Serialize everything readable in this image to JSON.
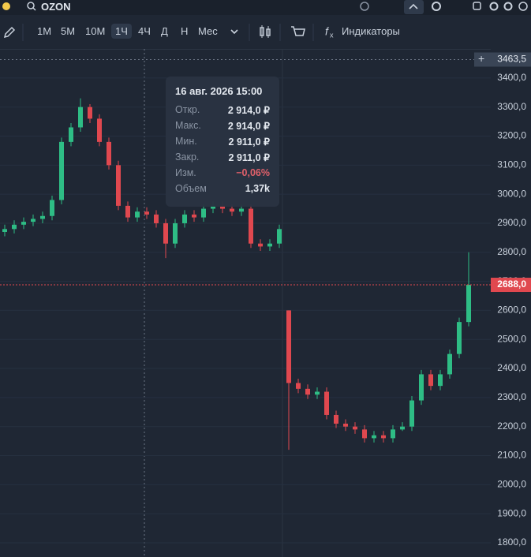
{
  "header": {
    "ticker": "OZON"
  },
  "toolbar": {
    "intervals": [
      "1М",
      "5М",
      "10М",
      "1Ч",
      "4Ч",
      "Д",
      "Н",
      "Мес"
    ],
    "active_interval": "1Ч",
    "indicators": "Индикаторы"
  },
  "chart_data": {
    "type": "candlestick",
    "up_color": "#2ebd85",
    "down_color": "#e0484f",
    "grid": true,
    "open": [
      2870,
      2880,
      2895,
      2905,
      2915,
      2925,
      2980,
      3180,
      3230,
      3300,
      3260,
      3180,
      3100,
      2960,
      2920,
      2940,
      2930,
      2900,
      2830,
      2900,
      2930,
      2920,
      2950,
      2960,
      2950,
      2940,
      2950,
      2830,
      2820,
      2830,
      2600,
      2350,
      2330,
      2310,
      2320,
      2240,
      2210,
      2200,
      2190,
      2160,
      2170,
      2160,
      2190,
      2200,
      2290,
      2380,
      2340,
      2380,
      2450,
      2560
    ],
    "high": [
      2895,
      2910,
      2920,
      2930,
      2940,
      2995,
      3195,
      3245,
      3330,
      3310,
      3275,
      3195,
      3115,
      2975,
      2955,
      2955,
      2945,
      2915,
      2915,
      2945,
      2945,
      2965,
      2975,
      2975,
      2965,
      2965,
      2965,
      2845,
      2845,
      2895,
      2600,
      2365,
      2345,
      2335,
      2335,
      2255,
      2225,
      2215,
      2205,
      2185,
      2185,
      2205,
      2215,
      2305,
      2395,
      2395,
      2395,
      2465,
      2575,
      2800
    ],
    "low": [
      2855,
      2865,
      2880,
      2890,
      2900,
      2910,
      2965,
      3165,
      3215,
      3245,
      3165,
      3085,
      2945,
      2905,
      2905,
      2915,
      2885,
      2780,
      2815,
      2885,
      2905,
      2905,
      2935,
      2935,
      2925,
      2925,
      2815,
      2805,
      2805,
      2815,
      2120,
      2315,
      2295,
      2295,
      2225,
      2195,
      2185,
      2175,
      2145,
      2145,
      2145,
      2145,
      2185,
      2185,
      2275,
      2325,
      2325,
      2365,
      2435,
      2545
    ],
    "close": [
      2880,
      2895,
      2905,
      2915,
      2925,
      2980,
      3180,
      3230,
      3300,
      3260,
      3180,
      3100,
      2960,
      2920,
      2940,
      2930,
      2900,
      2830,
      2900,
      2930,
      2920,
      2950,
      2960,
      2950,
      2940,
      2950,
      2830,
      2820,
      2830,
      2880,
      2350,
      2330,
      2310,
      2320,
      2240,
      2210,
      2200,
      2190,
      2160,
      2170,
      2160,
      2190,
      2200,
      2290,
      2380,
      2340,
      2380,
      2450,
      2560,
      2688
    ],
    "ylim": [
      1751,
      3492
    ],
    "yticks": [
      {
        "value": 1800,
        "label": "1800,0"
      },
      {
        "value": 1900,
        "label": "1900,0"
      },
      {
        "value": 2000,
        "label": "2000,0"
      },
      {
        "value": 2100,
        "label": "2100,0"
      },
      {
        "value": 2200,
        "label": "2200,0"
      },
      {
        "value": 2300,
        "label": "2300,0"
      },
      {
        "value": 2400,
        "label": "2400,0"
      },
      {
        "value": 2500,
        "label": "2500,0"
      },
      {
        "value": 2600,
        "label": "2600,0"
      },
      {
        "value": 2700,
        "label": "2700,0"
      },
      {
        "value": 2800,
        "label": "2800,0"
      },
      {
        "value": 2900,
        "label": "2900,0"
      },
      {
        "value": 3000,
        "label": "3000,0"
      },
      {
        "value": 3100,
        "label": "3100,0"
      },
      {
        "value": 3200,
        "label": "3200,0"
      },
      {
        "value": 3300,
        "label": "3300,0"
      },
      {
        "value": 3400,
        "label": "3400,0"
      }
    ],
    "crosshair_price": {
      "value": 3463.5,
      "label": "3463,5"
    },
    "last_price": {
      "value": 2688,
      "label": "2688,0"
    }
  },
  "tooltip": {
    "date": "16 авг. 2026 15:00",
    "rows": [
      {
        "label": "Откр.",
        "value": "2 914,0 ₽"
      },
      {
        "label": "Макс.",
        "value": "2 914,0 ₽"
      },
      {
        "label": "Мин.",
        "value": "2 911,0 ₽"
      },
      {
        "label": "Закр.",
        "value": "2 911,0 ₽"
      },
      {
        "label": "Изм.",
        "value": "−0,06%"
      },
      {
        "label": "Объем",
        "value": "1,37k"
      }
    ]
  }
}
